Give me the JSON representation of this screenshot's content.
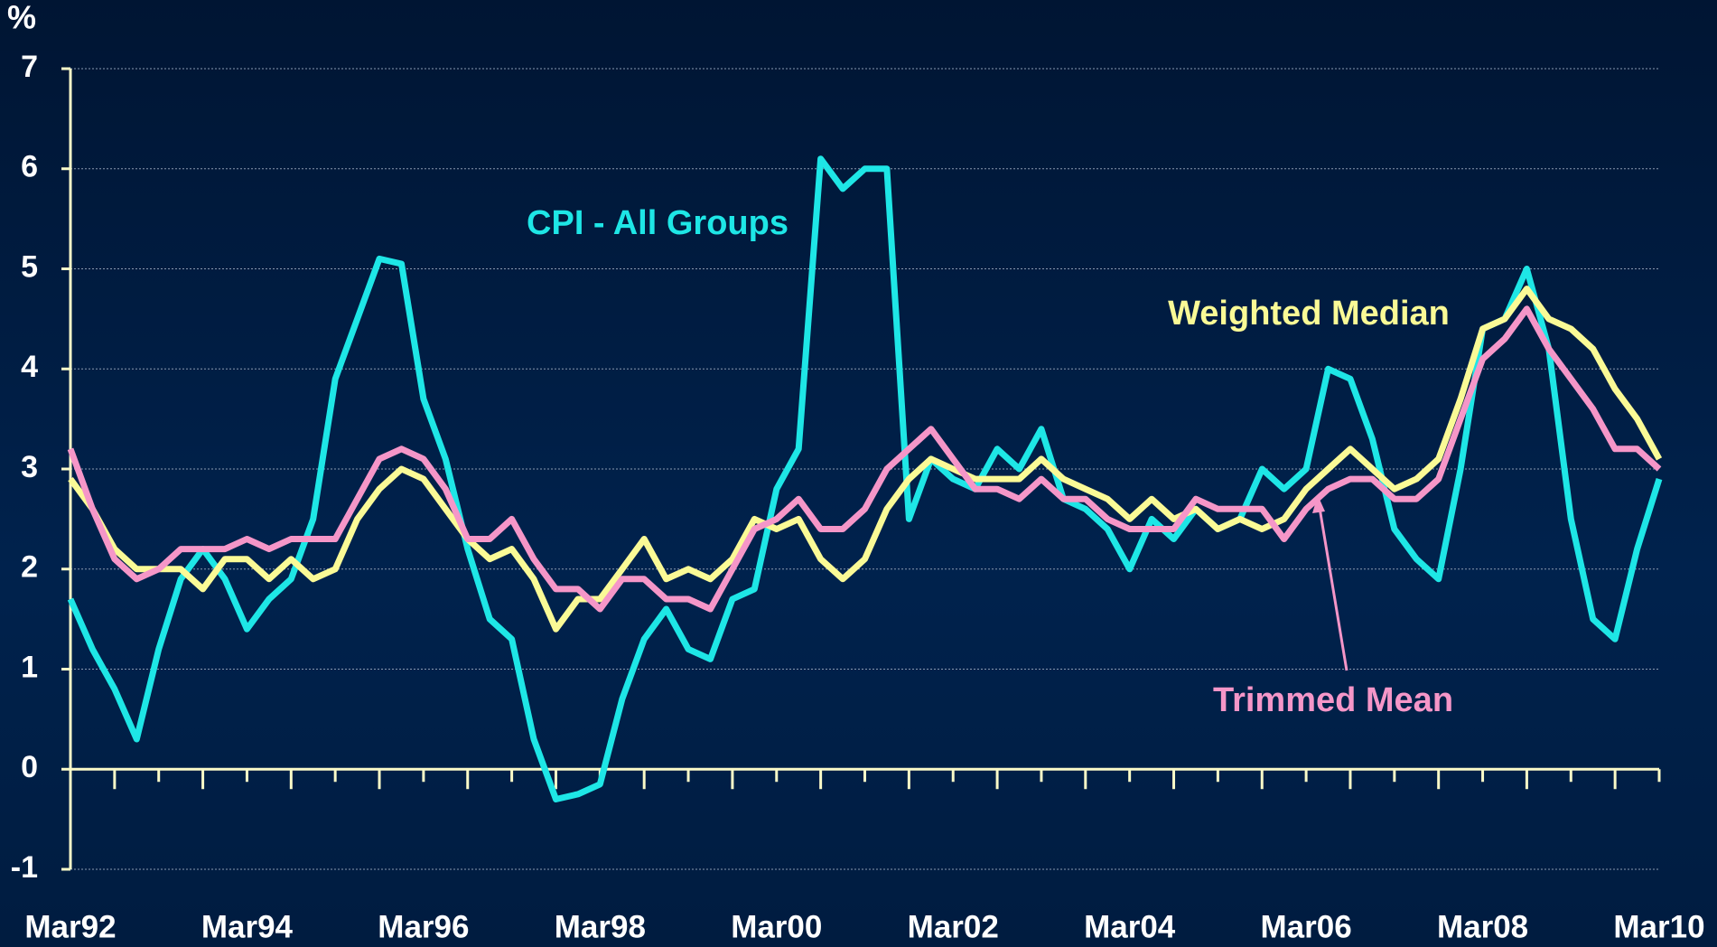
{
  "chart_data": {
    "type": "line",
    "y_label": "%",
    "categories": [
      "Mar92",
      null,
      null,
      null,
      null,
      null,
      null,
      null,
      "Mar94",
      null,
      null,
      null,
      null,
      null,
      null,
      null,
      "Mar96",
      null,
      null,
      null,
      null,
      null,
      null,
      null,
      "Mar98",
      null,
      null,
      null,
      null,
      null,
      null,
      null,
      "Mar00",
      null,
      null,
      null,
      null,
      null,
      null,
      null,
      "Mar02",
      null,
      null,
      null,
      null,
      null,
      null,
      null,
      "Mar04",
      null,
      null,
      null,
      null,
      null,
      null,
      null,
      "Mar06",
      null,
      null,
      null,
      null,
      null,
      null,
      null,
      "Mar08",
      null,
      null,
      null,
      null,
      null,
      null,
      null,
      "Mar10"
    ],
    "series": [
      {
        "name": "CPI - All Groups",
        "color": "#1ee6e6",
        "values": [
          1.7,
          1.2,
          0.8,
          0.3,
          1.2,
          1.9,
          2.2,
          1.9,
          1.4,
          1.7,
          1.9,
          2.5,
          3.9,
          4.5,
          5.1,
          5.05,
          3.7,
          3.1,
          2.2,
          1.5,
          1.3,
          0.3,
          -0.3,
          -0.25,
          -0.15,
          0.7,
          1.3,
          1.6,
          1.2,
          1.1,
          1.7,
          1.8,
          2.8,
          3.2,
          6.1,
          5.8,
          6.0,
          6.0,
          2.5,
          3.1,
          2.9,
          2.8,
          3.2,
          3.0,
          3.4,
          2.7,
          2.6,
          2.4,
          2.0,
          2.5,
          2.3,
          2.6,
          2.4,
          2.5,
          3.0,
          2.8,
          3.0,
          4.0,
          3.9,
          3.3,
          2.4,
          2.1,
          1.9,
          3.0,
          4.4,
          4.5,
          5.0,
          4.2,
          2.5,
          1.5,
          1.3,
          2.2,
          2.9
        ]
      },
      {
        "name": "Weighted Median",
        "color": "#fafa96",
        "values": [
          2.9,
          2.6,
          2.2,
          2.0,
          2.0,
          2.0,
          1.8,
          2.1,
          2.1,
          1.9,
          2.1,
          1.9,
          2.0,
          2.5,
          2.8,
          3.0,
          2.9,
          2.6,
          2.3,
          2.1,
          2.2,
          1.9,
          1.4,
          1.7,
          1.7,
          2.0,
          2.3,
          1.9,
          2.0,
          1.9,
          2.1,
          2.5,
          2.4,
          2.5,
          2.1,
          1.9,
          2.1,
          2.6,
          2.9,
          3.1,
          3.0,
          2.9,
          2.9,
          2.9,
          3.1,
          2.9,
          2.8,
          2.7,
          2.5,
          2.7,
          2.5,
          2.6,
          2.4,
          2.5,
          2.4,
          2.5,
          2.8,
          3.0,
          3.2,
          3.0,
          2.8,
          2.9,
          3.1,
          3.7,
          4.4,
          4.5,
          4.8,
          4.5,
          4.4,
          4.2,
          3.8,
          3.5,
          3.1
        ]
      },
      {
        "name": "Trimmed Mean",
        "color": "#f596c8",
        "values": [
          3.2,
          2.6,
          2.1,
          1.9,
          2.0,
          2.2,
          2.2,
          2.2,
          2.3,
          2.2,
          2.3,
          2.3,
          2.3,
          2.7,
          3.1,
          3.2,
          3.1,
          2.8,
          2.3,
          2.3,
          2.5,
          2.1,
          1.8,
          1.8,
          1.6,
          1.9,
          1.9,
          1.7,
          1.7,
          1.6,
          2.0,
          2.4,
          2.5,
          2.7,
          2.4,
          2.4,
          2.6,
          3.0,
          3.2,
          3.4,
          3.1,
          2.8,
          2.8,
          2.7,
          2.9,
          2.7,
          2.7,
          2.5,
          2.4,
          2.4,
          2.4,
          2.7,
          2.6,
          2.6,
          2.6,
          2.3,
          2.6,
          2.8,
          2.9,
          2.9,
          2.7,
          2.7,
          2.9,
          3.5,
          4.1,
          4.3,
          4.6,
          4.2,
          3.9,
          3.6,
          3.2,
          3.2,
          3.0
        ]
      }
    ],
    "ylim": [
      -1,
      7
    ],
    "yticks": [
      -1,
      0,
      1,
      2,
      3,
      4,
      5,
      6,
      7
    ],
    "grid": true
  }
}
